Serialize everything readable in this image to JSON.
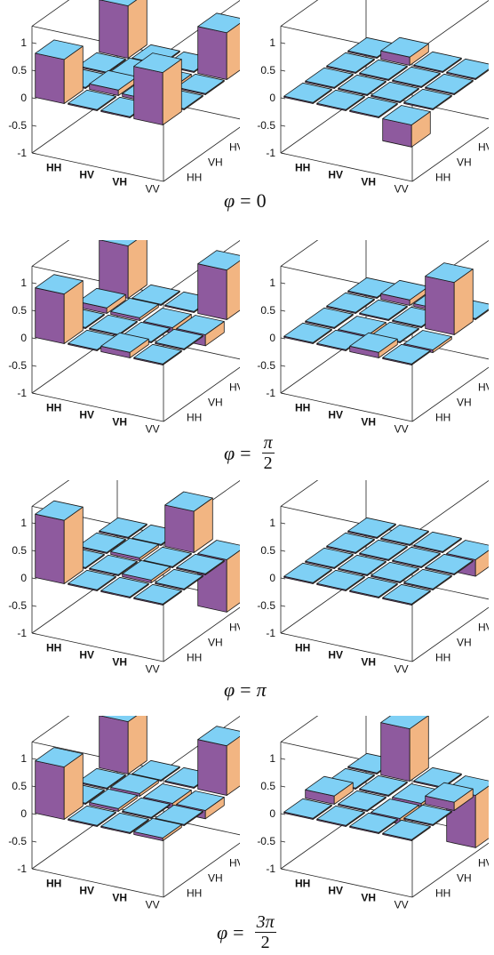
{
  "chart_data": {
    "type": "3d-bar",
    "description_axes": {
      "rows": [
        "HH",
        "HV",
        "VH",
        "VV"
      ],
      "cols": [
        "HH",
        "VH",
        "HV",
        "VV"
      ],
      "z_ticks": [
        "1",
        "0.5",
        "0",
        "-0.5",
        "-1"
      ],
      "zlim": [
        -1,
        1
      ]
    },
    "colors": {
      "top": "#7fd0f5",
      "left": "#8e5a9e",
      "right": "#f2b582",
      "edge": "#1a1a1a"
    },
    "panels": [
      {
        "phi_label": "0",
        "side": "left",
        "values": [
          [
            0.8,
            0,
            0,
            0.95
          ],
          [
            0,
            0.1,
            0.05,
            0
          ],
          [
            0,
            0.05,
            -0.1,
            0
          ],
          [
            0.95,
            0,
            0,
            0.85
          ]
        ]
      },
      {
        "phi_label": "0",
        "side": "right",
        "values": [
          [
            0,
            0,
            0,
            0
          ],
          [
            0,
            0,
            0,
            0.15
          ],
          [
            0,
            0,
            0,
            0
          ],
          [
            -0.4,
            0,
            0,
            0
          ]
        ]
      },
      {
        "phi_label": "π/2",
        "side": "left",
        "values": [
          [
            0.9,
            0,
            0.1,
            0.95
          ],
          [
            0,
            0,
            0.05,
            0
          ],
          [
            0.1,
            0,
            -0.1,
            0
          ],
          [
            0,
            0,
            -0.2,
            0.9
          ]
        ]
      },
      {
        "phi_label": "π/2",
        "side": "right",
        "values": [
          [
            0,
            0,
            0,
            0
          ],
          [
            0,
            -0.1,
            0,
            0.1
          ],
          [
            0.1,
            0,
            0,
            0.05
          ],
          [
            0,
            -0.05,
            0.95,
            0
          ]
        ]
      },
      {
        "phi_label": "π",
        "side": "left",
        "values": [
          [
            1.15,
            0,
            0,
            0
          ],
          [
            0,
            0,
            0.05,
            0
          ],
          [
            0,
            0.05,
            0,
            0.75
          ],
          [
            0,
            0,
            0,
            -0.95
          ]
        ]
      },
      {
        "phi_label": "π",
        "side": "right",
        "values": [
          [
            0,
            0,
            0,
            0
          ],
          [
            0,
            0,
            0,
            0
          ],
          [
            0,
            0,
            0,
            0
          ],
          [
            0,
            0,
            0,
            -0.3
          ]
        ]
      },
      {
        "phi_label": "3π/2",
        "side": "left",
        "values": [
          [
            0.95,
            0,
            0,
            0.95
          ],
          [
            0,
            0.05,
            0.05,
            0
          ],
          [
            0,
            0,
            -0.1,
            0
          ],
          [
            0.05,
            0,
            -0.15,
            0.9
          ]
        ]
      },
      {
        "phi_label": "3π/2",
        "side": "right",
        "values": [
          [
            0,
            0.15,
            0,
            0
          ],
          [
            0,
            0,
            0,
            0.95
          ],
          [
            0,
            -0.1,
            -0.05,
            0
          ],
          [
            0,
            0,
            0.15,
            -0.95
          ]
        ]
      }
    ]
  },
  "labels": {
    "phi_0": {
      "lhs": "φ",
      "eq": "=",
      "rhs": "0"
    },
    "phi_pi2": {
      "lhs": "φ",
      "eq": "=",
      "num": "π",
      "den": "2"
    },
    "phi_pi": {
      "lhs": "φ",
      "eq": "=",
      "rhs": "π"
    },
    "phi_3pi2": {
      "lhs": "φ",
      "eq": "=",
      "num": "3π",
      "den": "2"
    }
  }
}
